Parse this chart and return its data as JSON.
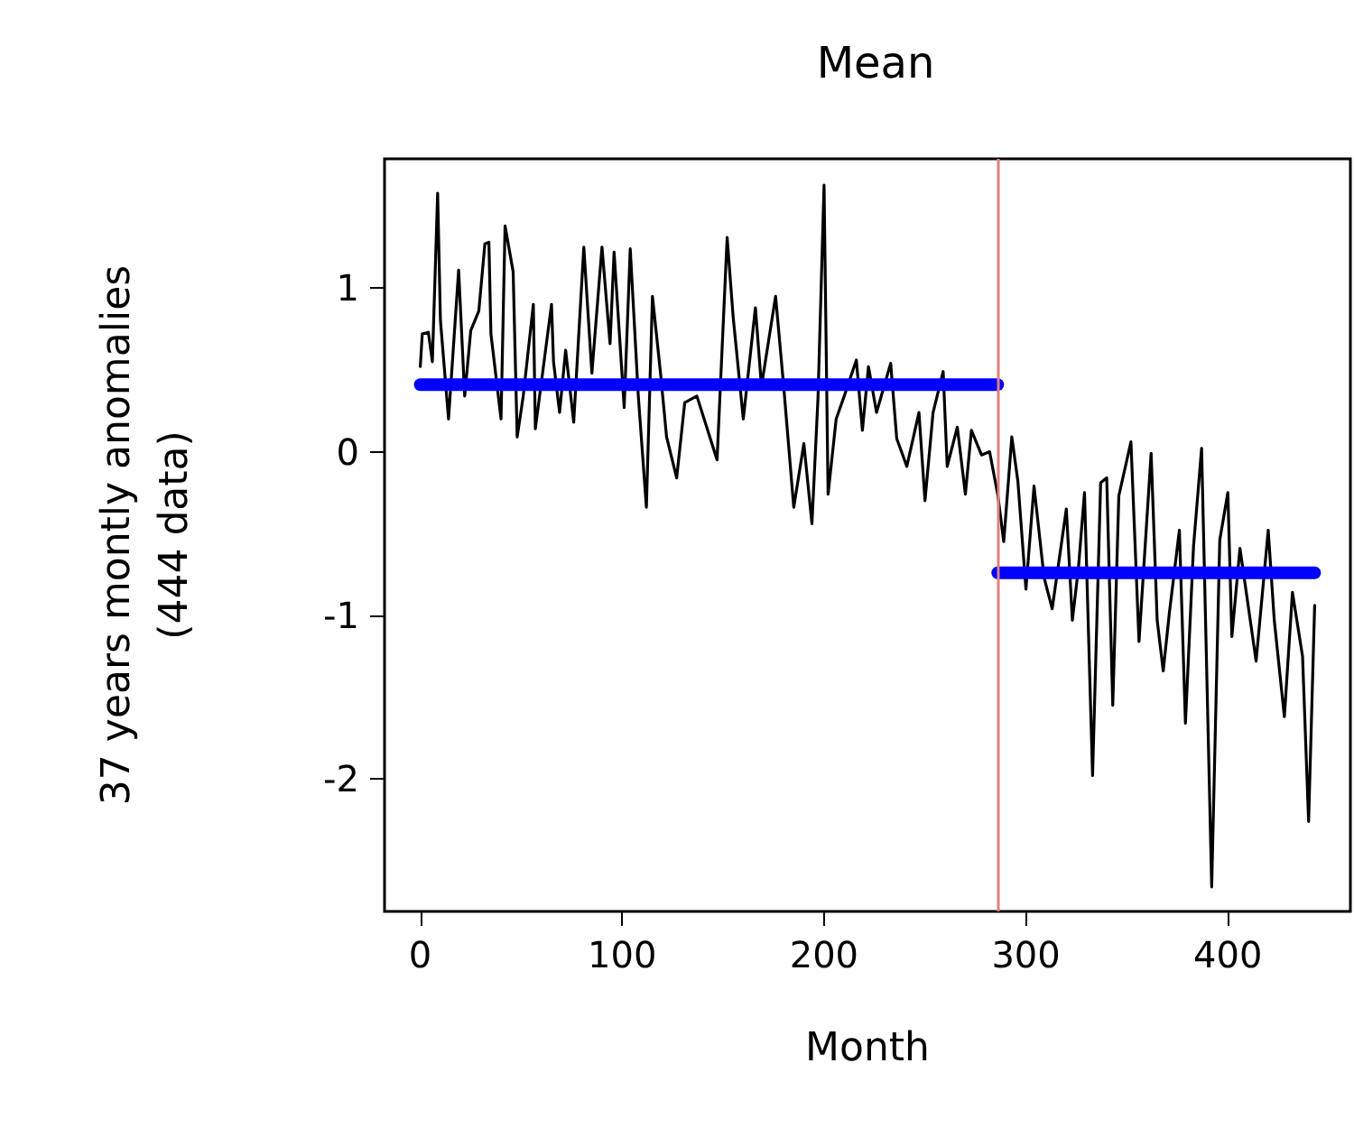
{
  "chart_data": {
    "type": "line",
    "title": "Mean",
    "xlabel": "Month",
    "ylabel": "37 years montly anomalies\n(444 data)",
    "xlim": [
      -17.7,
      460.7
    ],
    "xticks": [
      0,
      100,
      200,
      300,
      400
    ],
    "ylim": [
      -2.81,
      1.79
    ],
    "yticks": [
      -2,
      -1,
      0,
      1
    ],
    "grid": false,
    "marker": "none",
    "line_style": "solid",
    "ref_lines": [
      {
        "axis": "x",
        "value": 286,
        "label": null,
        "color": "#e08080"
      }
    ],
    "series": [
      {
        "color": "#000000",
        "x": [
          0,
          1,
          4,
          6,
          8.6,
          10,
          14,
          19,
          22,
          25,
          29,
          32,
          34,
          35,
          40,
          42,
          46,
          48,
          51,
          56,
          57,
          65,
          66,
          69,
          72,
          76,
          81,
          85,
          90,
          94,
          96,
          101,
          104,
          108,
          112,
          115,
          119,
          122,
          127,
          131,
          137,
          147,
          152,
          155,
          160,
          166,
          169,
          176,
          180,
          185,
          190,
          194,
          197,
          200,
          202,
          206,
          210,
          216,
          219,
          222,
          226,
          233,
          236,
          241,
          247,
          250,
          254,
          259,
          261,
          266,
          270,
          273,
          278,
          282,
          286,
          289,
          293,
          296,
          300,
          304,
          309,
          313,
          320,
          323,
          326,
          329,
          333,
          337,
          340,
          343,
          346,
          352,
          356,
          362,
          365,
          368,
          371,
          376,
          379,
          383,
          387,
          392,
          396,
          400,
          402,
          406,
          414,
          420,
          423,
          428,
          432,
          437,
          440,
          443
        ],
        "values": [
          0.52,
          0.72,
          0.73,
          0.55,
          1.58,
          0.8,
          0.2,
          1.11,
          0.34,
          0.74,
          0.86,
          1.27,
          1.28,
          0.72,
          0.2,
          1.38,
          1.1,
          0.09,
          0.34,
          0.9,
          0.14,
          0.9,
          0.55,
          0.24,
          0.62,
          0.18,
          1.25,
          0.48,
          1.25,
          0.66,
          1.22,
          0.27,
          1.24,
          0.34,
          -0.34,
          0.95,
          0.48,
          0.09,
          -0.16,
          0.3,
          0.34,
          -0.05,
          1.31,
          0.82,
          0.2,
          0.88,
          0.4,
          0.95,
          0.4,
          -0.34,
          0.05,
          -0.44,
          0.33,
          1.63,
          -0.26,
          0.2,
          0.34,
          0.56,
          0.13,
          0.52,
          0.24,
          0.54,
          0.08,
          -0.09,
          0.24,
          -0.3,
          0.24,
          0.49,
          -0.09,
          0.15,
          -0.26,
          0.13,
          -0.02,
          0.0,
          -0.26,
          -0.55,
          0.09,
          -0.18,
          -0.84,
          -0.21,
          -0.77,
          -0.96,
          -0.35,
          -1.03,
          -0.71,
          -0.25,
          -1.98,
          -0.19,
          -0.16,
          -1.55,
          -0.27,
          0.06,
          -1.16,
          -0.01,
          -1.03,
          -1.34,
          -0.99,
          -0.48,
          -1.66,
          -0.58,
          0.02,
          -2.66,
          -0.54,
          -0.25,
          -1.13,
          -0.59,
          -1.28,
          -0.48,
          -1.03,
          -1.62,
          -0.86,
          -1.25,
          -2.26,
          -0.94
        ]
      },
      {
        "color": "#0000ff",
        "x": [
          0,
          286
        ],
        "values": [
          0.41,
          0.41
        ]
      },
      {
        "color": "#0000ff",
        "x": [
          286,
          443
        ],
        "values": [
          -0.74,
          -0.74
        ]
      }
    ]
  }
}
